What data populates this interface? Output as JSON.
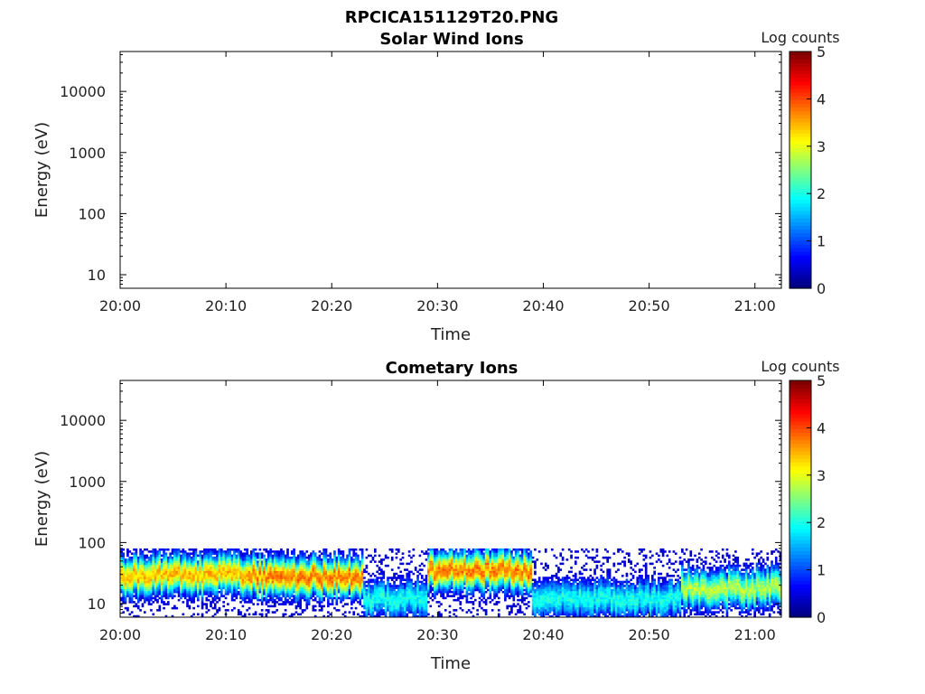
{
  "figure_title": "RPCICA151129T20.PNG",
  "chart_data": [
    {
      "type": "heatmap",
      "title": "Solar Wind Ions",
      "xlabel": "Time",
      "ylabel": "Energy (eV)",
      "x_tick_labels": [
        "20:00",
        "20:10",
        "20:20",
        "20:30",
        "20:40",
        "20:50",
        "21:00"
      ],
      "xlim_minutes_after_20": [
        0,
        62.5
      ],
      "y_scale": "log",
      "ylim": [
        6,
        45000
      ],
      "y_tick_labels": [
        "10",
        "100",
        "1000",
        "10000"
      ],
      "y_tick_values": [
        10,
        100,
        1000,
        10000
      ],
      "colorbar": {
        "label": "Log counts",
        "range": [
          0,
          5
        ],
        "tick_labels": [
          "0",
          "1",
          "2",
          "3",
          "4",
          "5"
        ],
        "colormap": "jet"
      },
      "data": []
    },
    {
      "type": "heatmap",
      "title": "Cometary Ions",
      "xlabel": "Time",
      "ylabel": "Energy (eV)",
      "x_tick_labels": [
        "20:00",
        "20:10",
        "20:20",
        "20:30",
        "20:40",
        "20:50",
        "21:00"
      ],
      "xlim_minutes_after_20": [
        0,
        62.5
      ],
      "y_scale": "log",
      "ylim": [
        6,
        45000
      ],
      "y_tick_labels": [
        "10",
        "100",
        "1000",
        "10000"
      ],
      "y_tick_values": [
        10,
        100,
        1000,
        10000
      ],
      "colorbar": {
        "label": "Log counts",
        "range": [
          0,
          5
        ],
        "tick_labels": [
          "0",
          "1",
          "2",
          "3",
          "4",
          "5"
        ],
        "colormap": "jet"
      },
      "energy_upper_cutoff_eV": 80,
      "segments": [
        {
          "time_range": [
            "20:00",
            "20:12"
          ],
          "peak_energy_eV": 30,
          "peak_log_counts": 3.5
        },
        {
          "time_range": [
            "20:12",
            "20:23"
          ],
          "peak_energy_eV": 28,
          "peak_log_counts": 3.8
        },
        {
          "time_range": [
            "20:23",
            "20:29"
          ],
          "peak_energy_eV": 12,
          "peak_log_counts": 2.0
        },
        {
          "time_range": [
            "20:29",
            "20:39"
          ],
          "peak_energy_eV": 35,
          "peak_log_counts": 3.8
        },
        {
          "time_range": [
            "20:39",
            "20:53"
          ],
          "peak_energy_eV": 12,
          "peak_log_counts": 2.0
        },
        {
          "time_range": [
            "20:53",
            "21:02"
          ],
          "peak_energy_eV": 18,
          "peak_log_counts": 2.8
        }
      ]
    }
  ]
}
